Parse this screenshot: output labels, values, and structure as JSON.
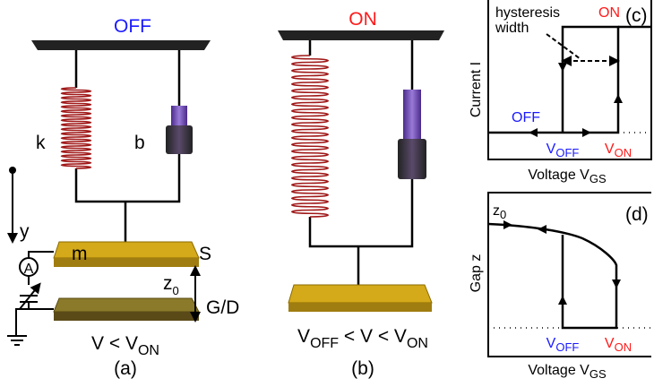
{
  "panel_a": {
    "state": "OFF",
    "spring": "k",
    "damper": "b",
    "axis": "y",
    "ammeter": "A",
    "mass": "m",
    "source": "S",
    "gap": {
      "main": "z",
      "sub": "0"
    },
    "drain": "G/D",
    "condition": {
      "main": "V < V",
      "sub": "ON"
    },
    "label": "(a)"
  },
  "panel_b": {
    "state": "ON",
    "condition": {
      "v1": "V",
      "sub1": "OFF",
      "mid": " < V < V",
      "sub2": "ON"
    },
    "label": "(b)"
  },
  "panel_c": {
    "annotation": [
      "hysteresis",
      "width"
    ],
    "on": "ON",
    "label": "(c)",
    "y_axis": "Current I",
    "off": "OFF",
    "v_off": {
      "main": "V",
      "sub": "OFF"
    },
    "v_on": {
      "main": "V",
      "sub": "ON"
    },
    "x_axis": {
      "main": "Voltage V",
      "sub": "GS"
    }
  },
  "panel_d": {
    "start": {
      "main": "z",
      "sub": "0"
    },
    "label": "(d)",
    "y_axis": "Gap z",
    "v_off": {
      "main": "V",
      "sub": "OFF"
    },
    "v_on": {
      "main": "V",
      "sub": "ON"
    },
    "x_axis": {
      "main": "Voltage V",
      "sub": "GS"
    }
  }
}
